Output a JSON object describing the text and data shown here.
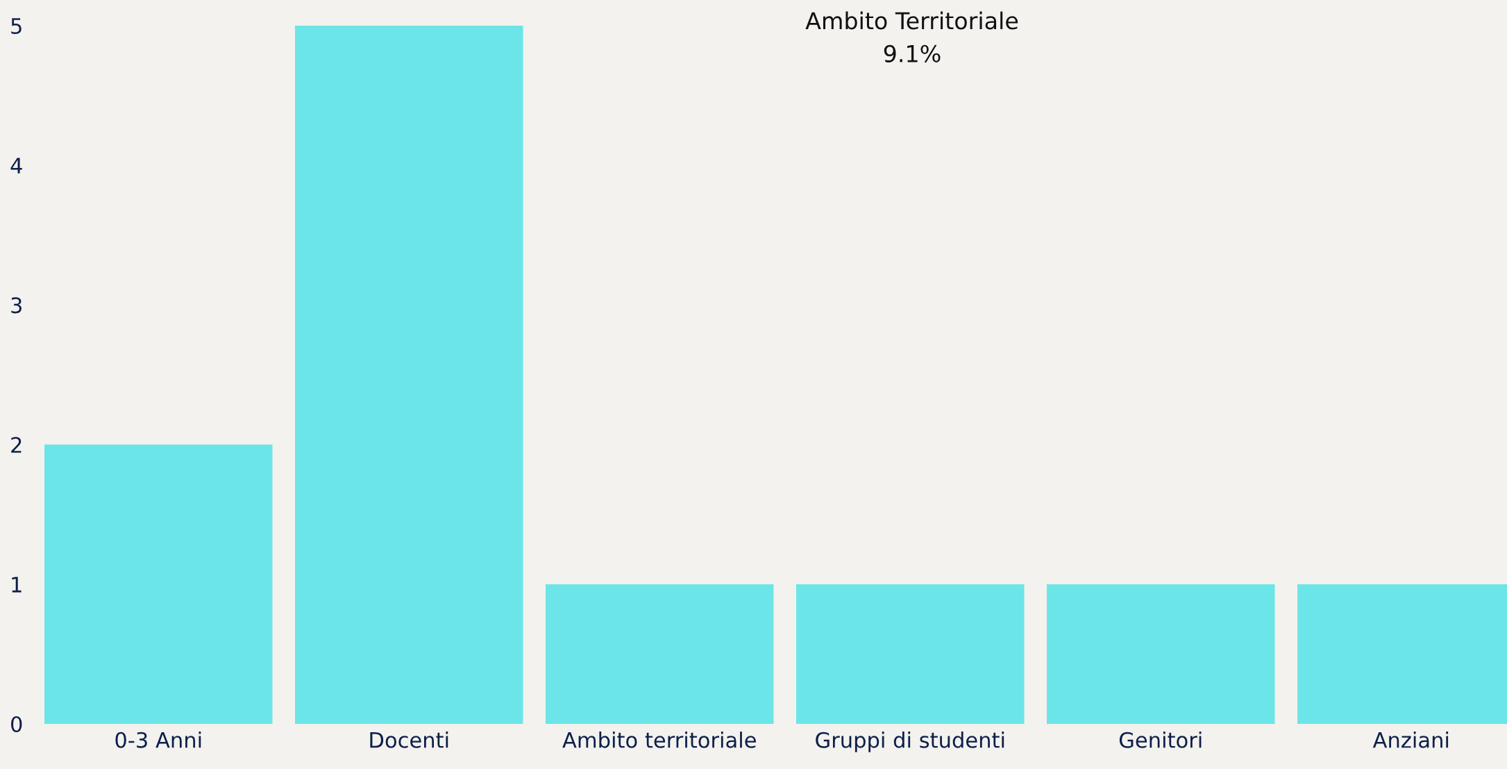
{
  "chart_data": {
    "type": "bar",
    "categories": [
      "0-3 Anni",
      "Docenti",
      "Ambito territoriale",
      "Gruppi di studenti",
      "Genitori",
      "Anziani"
    ],
    "values": [
      2,
      5,
      1,
      1,
      1,
      1
    ],
    "color": "#6ce5e8",
    "ylim": [
      0,
      5
    ],
    "yticks": [
      0,
      1,
      2,
      3,
      4,
      5
    ],
    "annotations": [
      "Ambito Territoriale\n9.1%"
    ],
    "grid": false,
    "legend": false
  }
}
